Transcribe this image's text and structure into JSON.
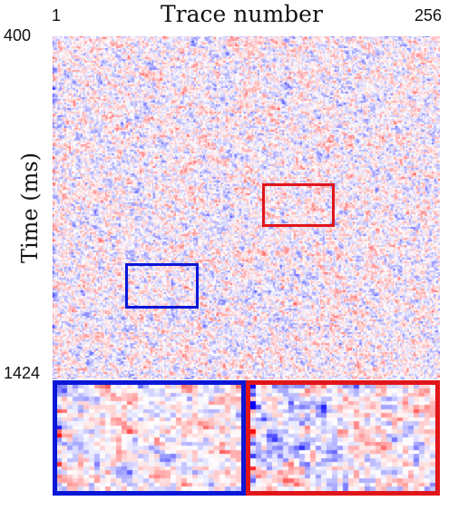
{
  "chart_data": {
    "type": "heatmap",
    "title": "Trace number",
    "xlabel": "",
    "ylabel": "Time (ms)",
    "x_range": [
      1,
      256
    ],
    "y_range": [
      400,
      1424
    ],
    "x_ticks": [
      "1",
      "256"
    ],
    "y_ticks": [
      "400",
      "1424"
    ],
    "colormap": [
      "#0000ff",
      "#ffffff",
      "#ff0000"
    ],
    "grid": false,
    "insets": [
      {
        "name": "blue",
        "color": "#0a17d6"
      },
      {
        "name": "red",
        "color": "#e0151a"
      }
    ]
  }
}
